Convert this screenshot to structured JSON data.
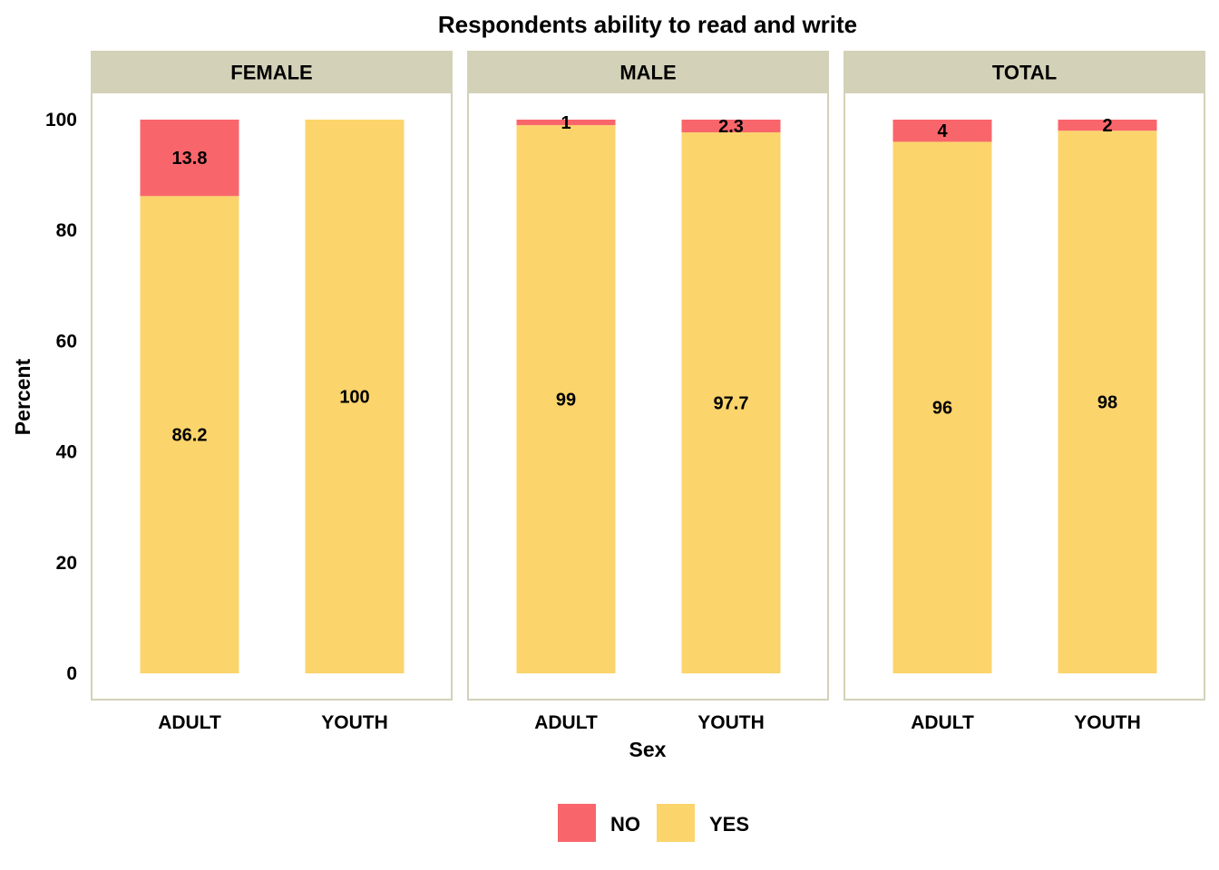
{
  "chart_data": {
    "type": "bar",
    "stacked": true,
    "title": "Respondents ability to read and write",
    "xlabel": "Sex",
    "ylabel": "Percent",
    "ylim": [
      0,
      100
    ],
    "yticks": [
      0,
      20,
      40,
      60,
      80,
      100
    ],
    "grid": false,
    "legend_position": "bottom",
    "categories": [
      "ADULT",
      "YOUTH"
    ],
    "series_colors": {
      "NO": "#F8666B",
      "YES": "#FBD46C"
    },
    "strip_color": "#D3D2B8",
    "panel_border_color": "#D3D2B8",
    "legend": [
      {
        "name": "NO",
        "color": "#F8666B"
      },
      {
        "name": "YES",
        "color": "#FBD46C"
      }
    ],
    "panels": [
      {
        "facet": "FEMALE",
        "series": [
          {
            "name": "YES",
            "values": [
              86.2,
              100
            ],
            "labels": [
              "86.2",
              "100"
            ]
          },
          {
            "name": "NO",
            "values": [
              13.8,
              0
            ],
            "labels": [
              "13.8",
              ""
            ]
          }
        ]
      },
      {
        "facet": "MALE",
        "series": [
          {
            "name": "YES",
            "values": [
              99,
              97.7
            ],
            "labels": [
              "99",
              "97.7"
            ]
          },
          {
            "name": "NO",
            "values": [
              1,
              2.3
            ],
            "labels": [
              "1",
              "2.3"
            ]
          }
        ]
      },
      {
        "facet": "TOTAL",
        "series": [
          {
            "name": "YES",
            "values": [
              96,
              98
            ],
            "labels": [
              "96",
              "98"
            ]
          },
          {
            "name": "NO",
            "values": [
              4,
              2
            ],
            "labels": [
              "4",
              "2"
            ]
          }
        ]
      }
    ]
  }
}
